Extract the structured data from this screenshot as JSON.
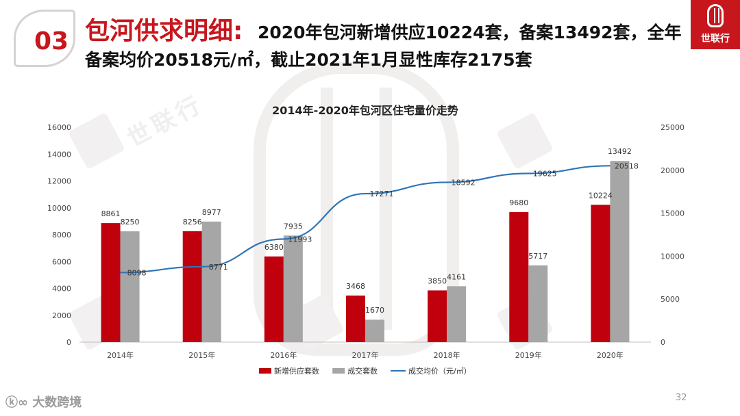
{
  "header": {
    "section_number": "03",
    "title": "包河供求明细:",
    "summary_line1": "2020年包河新增供应10224套，备案13492套，全年",
    "summary_line2": "备案均价20518元/㎡，截止2021年1月显性库存2175套"
  },
  "brand": {
    "logo_text": "世联行",
    "footer_logo": "大数跨境",
    "accent_color": "#c8161d"
  },
  "page_number": "32",
  "chart_data": {
    "type": "bar",
    "title": "2014年-2020年包河区住宅量价走势",
    "categories": [
      "2014年",
      "2015年",
      "2016年",
      "2017年",
      "2018年",
      "2019年",
      "2020年"
    ],
    "series": [
      {
        "name": "新增供应套数",
        "type": "bar",
        "axis": "left",
        "color": "#c0000c",
        "values": [
          8861,
          8256,
          6380,
          3468,
          3850,
          9680,
          10224
        ]
      },
      {
        "name": "成交套数",
        "type": "bar",
        "axis": "left",
        "color": "#a6a6a6",
        "values": [
          8250,
          8977,
          7935,
          1670,
          4161,
          5717,
          13492
        ]
      },
      {
        "name": "成交均价（元/㎡）",
        "type": "line",
        "axis": "right",
        "color": "#2e75b6",
        "values": [
          8098,
          8771,
          11993,
          17271,
          18592,
          19625,
          20518
        ]
      }
    ],
    "y_left": {
      "min": 0,
      "max": 16000,
      "ticks": [
        0,
        2000,
        4000,
        6000,
        8000,
        10000,
        12000,
        14000,
        16000
      ]
    },
    "y_right": {
      "min": 0,
      "max": 25000,
      "ticks": [
        0,
        5000,
        10000,
        15000,
        20000,
        25000
      ]
    },
    "legend_position": "bottom",
    "grid": false
  }
}
